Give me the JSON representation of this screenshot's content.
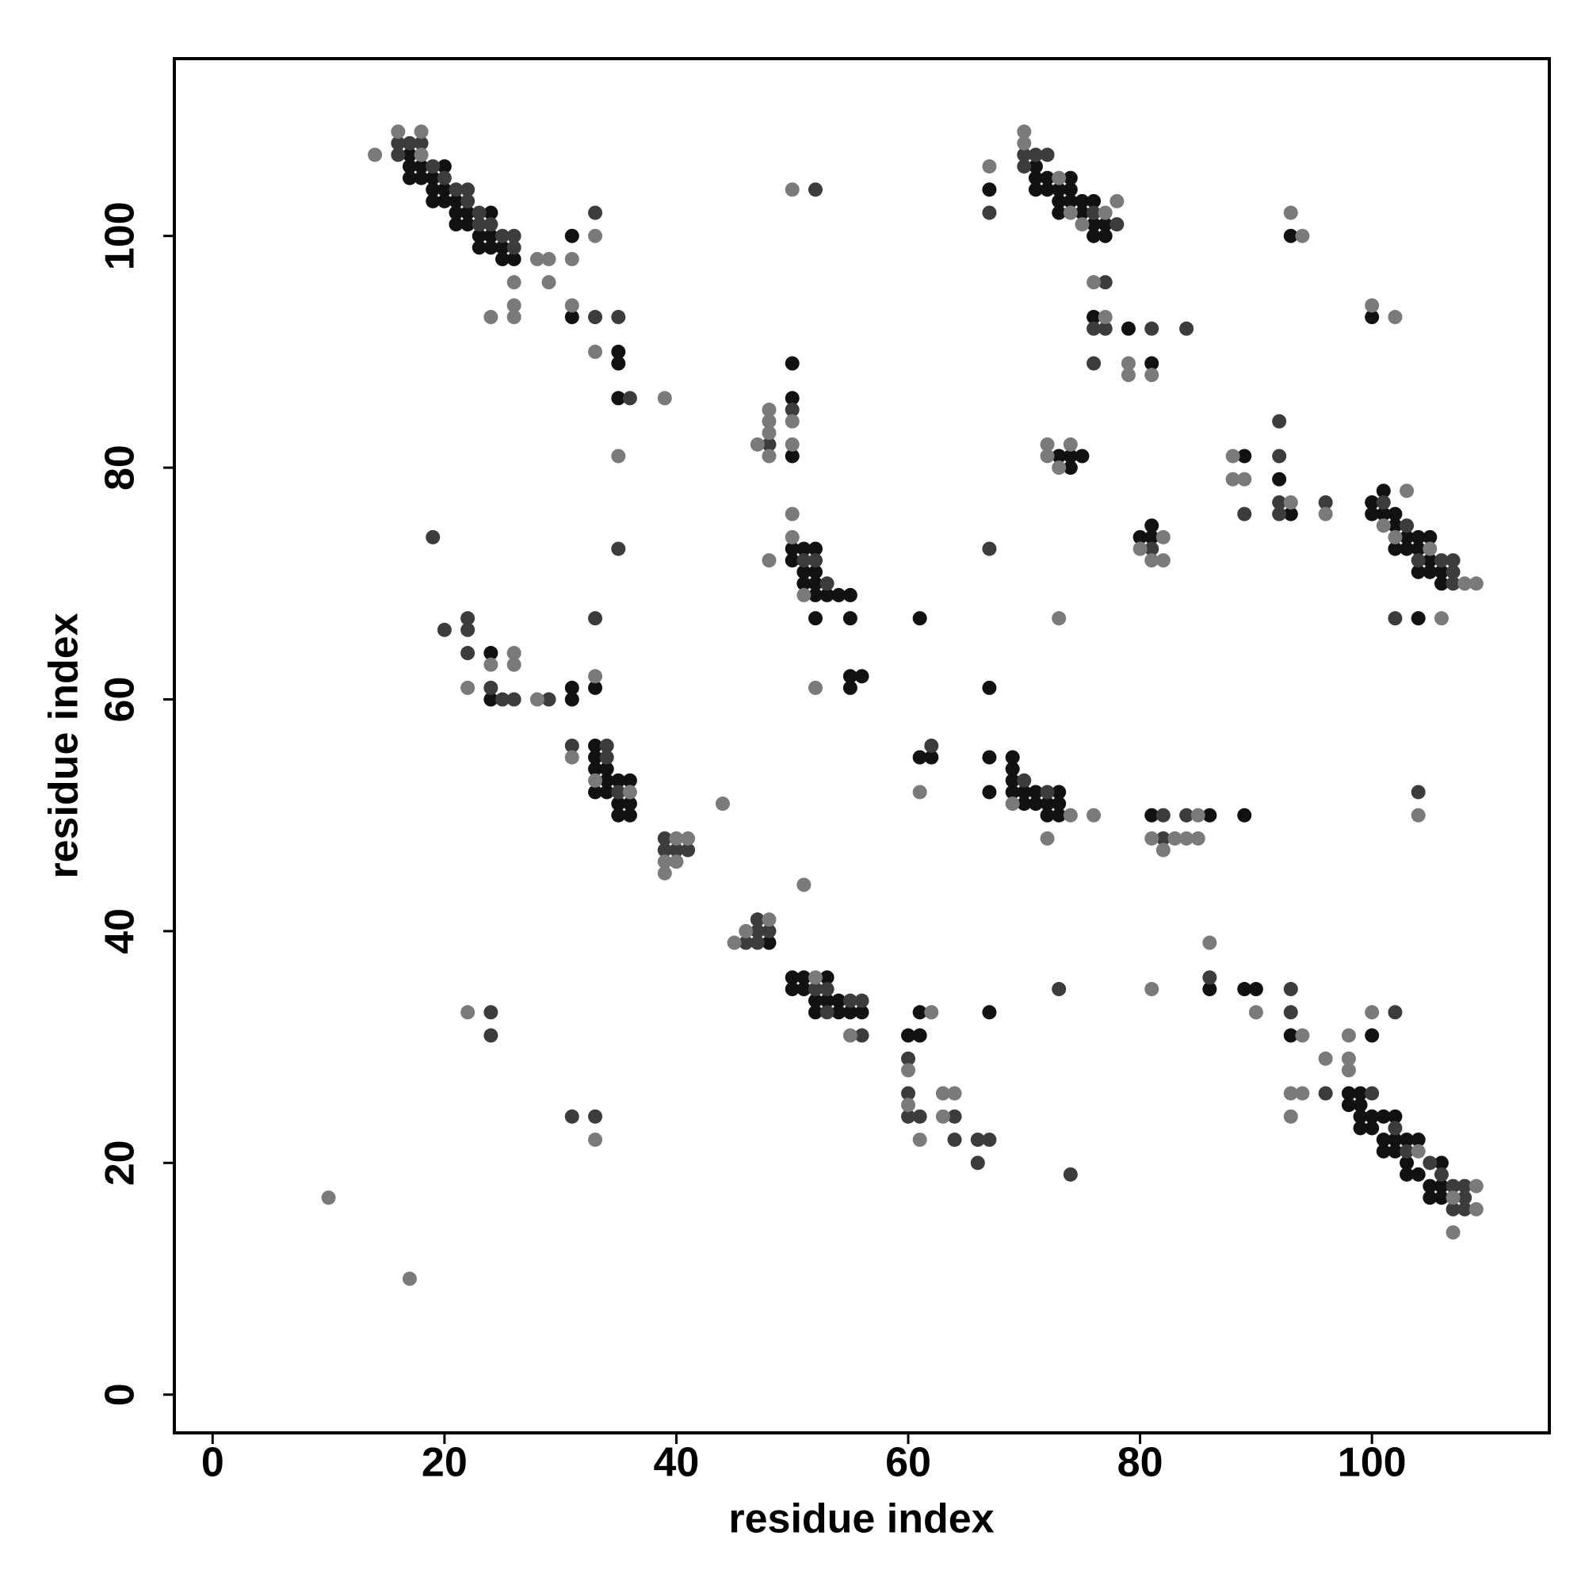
{
  "chart_data": {
    "type": "scatter",
    "x_label": "residue index",
    "y_label": "residue index",
    "xlim": [
      -3.3,
      115.3
    ],
    "ylim": [
      -3.3,
      115.3
    ],
    "xticks": [
      0,
      20,
      40,
      60,
      80,
      100
    ],
    "yticks": [
      0,
      20,
      40,
      60,
      80,
      100
    ],
    "series": [
      {
        "color": "#111111",
        "x": [
          17,
          17,
          17,
          18,
          18,
          19,
          19,
          19,
          20,
          20,
          20,
          21,
          21,
          21,
          22,
          22,
          23,
          23,
          24,
          24,
          24,
          25,
          25,
          26,
          31,
          31,
          35,
          35,
          35,
          24,
          24,
          31,
          31,
          33,
          33,
          33,
          33,
          33,
          34,
          34,
          34,
          35,
          35,
          35,
          36,
          36,
          36,
          48,
          50,
          50,
          50,
          50,
          50,
          51,
          51,
          51,
          52,
          52,
          52,
          52,
          52,
          53,
          54,
          55,
          55,
          55,
          55,
          56,
          50,
          50,
          51,
          51,
          52,
          52,
          53,
          53,
          54,
          54,
          55,
          56,
          60,
          61,
          61,
          61,
          61,
          62,
          67,
          67,
          67,
          67,
          67,
          69,
          69,
          69,
          69,
          70,
          70,
          71,
          71,
          72,
          72,
          73,
          73,
          73,
          71,
          71,
          71,
          72,
          72,
          73,
          73,
          73,
          74,
          74,
          74,
          75,
          75,
          76,
          76,
          76,
          77,
          77,
          76,
          79,
          81,
          73,
          74,
          74,
          75,
          80,
          81,
          81,
          81,
          86,
          89,
          86,
          89,
          90,
          89,
          92,
          93,
          93,
          100,
          100,
          100,
          101,
          101,
          102,
          102,
          102,
          103,
          103,
          104,
          104,
          104,
          105,
          105,
          105,
          106,
          106,
          104,
          93,
          100,
          98,
          98,
          99,
          99,
          99,
          99,
          100,
          100,
          101,
          101,
          101,
          102,
          102,
          102,
          103,
          103,
          103,
          104,
          104,
          105,
          105,
          106,
          106,
          106
        ],
        "values": [
          107,
          106,
          105,
          106,
          105,
          105,
          104,
          103,
          106,
          104,
          103,
          103,
          102,
          101,
          102,
          101,
          100,
          99,
          102,
          100,
          99,
          99,
          98,
          98,
          100,
          93,
          90,
          89,
          86,
          64,
          60,
          61,
          60,
          61,
          56,
          55,
          54,
          52,
          54,
          53,
          52,
          53,
          51,
          50,
          53,
          51,
          50,
          39,
          89,
          86,
          81,
          73,
          72,
          73,
          71,
          70,
          73,
          71,
          70,
          69,
          67,
          69,
          69,
          69,
          67,
          62,
          61,
          62,
          36,
          35,
          36,
          35,
          34,
          33,
          36,
          34,
          34,
          33,
          33,
          33,
          31,
          31,
          33,
          67,
          55,
          55,
          104,
          61,
          55,
          52,
          33,
          55,
          54,
          53,
          52,
          52,
          51,
          52,
          51,
          51,
          50,
          52,
          51,
          50,
          106,
          105,
          104,
          105,
          104,
          104,
          103,
          102,
          105,
          104,
          103,
          103,
          102,
          103,
          101,
          100,
          101,
          100,
          93,
          92,
          89,
          81,
          81,
          80,
          81,
          74,
          75,
          74,
          50,
          50,
          50,
          35,
          35,
          35,
          81,
          79,
          76,
          100,
          93,
          77,
          76,
          78,
          76,
          76,
          75,
          73,
          74,
          73,
          74,
          73,
          71,
          74,
          72,
          71,
          71,
          70,
          67,
          31,
          31,
          26,
          25,
          26,
          25,
          24,
          23,
          24,
          23,
          24,
          22,
          21,
          24,
          22,
          21,
          22,
          20,
          19,
          22,
          19,
          18,
          17,
          20,
          18,
          17
        ]
      },
      {
        "color": "#3c3c3c",
        "x": [
          16,
          16,
          17,
          18,
          19,
          20,
          21,
          22,
          22,
          23,
          23,
          24,
          25,
          26,
          26,
          33,
          33,
          35,
          35,
          36,
          19,
          20,
          22,
          22,
          22,
          24,
          25,
          26,
          29,
          33,
          31,
          34,
          34,
          35,
          39,
          39,
          40,
          41,
          46,
          47,
          47,
          47,
          48,
          48,
          52,
          50,
          51,
          52,
          53,
          52,
          53,
          53,
          55,
          56,
          56,
          24,
          24,
          31,
          33,
          60,
          60,
          60,
          61,
          62,
          64,
          64,
          66,
          66,
          67,
          67,
          67,
          70,
          72,
          73,
          74,
          70,
          70,
          71,
          72,
          76,
          78,
          77,
          76,
          77,
          76,
          81,
          84,
          81,
          82,
          82,
          84,
          86,
          89,
          92,
          92,
          92,
          92,
          96,
          101,
          103,
          104,
          106,
          107,
          107,
          107,
          102,
          104,
          93,
          93,
          96,
          102,
          100,
          102,
          103,
          105,
          106,
          107,
          107,
          108,
          108,
          108
        ],
        "values": [
          108,
          107,
          108,
          108,
          106,
          105,
          104,
          104,
          103,
          102,
          101,
          101,
          100,
          100,
          99,
          102,
          93,
          93,
          73,
          86,
          74,
          66,
          67,
          66,
          64,
          61,
          60,
          60,
          60,
          67,
          56,
          56,
          55,
          52,
          48,
          47,
          47,
          47,
          39,
          41,
          40,
          39,
          40,
          82,
          104,
          85,
          72,
          72,
          70,
          35,
          35,
          33,
          34,
          34,
          31,
          33,
          31,
          24,
          24,
          29,
          26,
          24,
          24,
          56,
          24,
          22,
          22,
          20,
          22,
          102,
          73,
          53,
          52,
          35,
          19,
          107,
          106,
          107,
          107,
          102,
          101,
          96,
          92,
          92,
          89,
          92,
          92,
          73,
          50,
          48,
          50,
          36,
          76,
          84,
          81,
          77,
          76,
          77,
          77,
          75,
          72,
          72,
          72,
          71,
          70,
          67,
          52,
          35,
          33,
          26,
          33,
          26,
          23,
          21,
          20,
          19,
          18,
          16,
          18,
          17,
          16
        ]
      },
      {
        "color": "#7a7a7a",
        "x": [
          14,
          16,
          18,
          18,
          26,
          26,
          26,
          28,
          29,
          29,
          31,
          31,
          33,
          33,
          35,
          39,
          24,
          22,
          24,
          26,
          26,
          28,
          33,
          31,
          33,
          36,
          39,
          39,
          40,
          40,
          41,
          44,
          45,
          46,
          48,
          47,
          48,
          48,
          48,
          48,
          48,
          50,
          50,
          50,
          50,
          50,
          51,
          52,
          51,
          52,
          55,
          22,
          33,
          10,
          17,
          62,
          60,
          60,
          61,
          61,
          63,
          63,
          64,
          67,
          69,
          72,
          74,
          76,
          70,
          70,
          73,
          74,
          75,
          77,
          78,
          76,
          77,
          79,
          79,
          81,
          72,
          72,
          73,
          74,
          73,
          80,
          81,
          82,
          82,
          81,
          82,
          83,
          84,
          85,
          85,
          81,
          86,
          90,
          88,
          88,
          89,
          93,
          96,
          93,
          94,
          100,
          102,
          101,
          102,
          103,
          105,
          108,
          109,
          106,
          104,
          94,
          93,
          94,
          93,
          96,
          98,
          98,
          98,
          100,
          104,
          107,
          107,
          109,
          109
        ],
        "values": [
          107,
          109,
          109,
          107,
          96,
          94,
          93,
          98,
          98,
          96,
          98,
          94,
          100,
          90,
          81,
          86,
          93,
          61,
          63,
          64,
          63,
          60,
          62,
          55,
          53,
          52,
          46,
          45,
          48,
          46,
          48,
          51,
          39,
          40,
          41,
          82,
          85,
          84,
          83,
          81,
          72,
          104,
          84,
          82,
          76,
          74,
          69,
          61,
          44,
          36,
          31,
          33,
          22,
          17,
          10,
          33,
          28,
          25,
          22,
          52,
          26,
          24,
          26,
          106,
          51,
          48,
          50,
          50,
          109,
          108,
          105,
          102,
          101,
          102,
          103,
          96,
          93,
          89,
          88,
          88,
          82,
          81,
          80,
          82,
          67,
          73,
          72,
          74,
          72,
          48,
          47,
          48,
          48,
          50,
          48,
          35,
          39,
          33,
          81,
          79,
          79,
          77,
          76,
          102,
          100,
          94,
          93,
          75,
          74,
          78,
          73,
          70,
          70,
          67,
          50,
          31,
          26,
          26,
          24,
          29,
          31,
          29,
          28,
          33,
          21,
          17,
          14,
          18,
          16
        ]
      }
    ]
  }
}
